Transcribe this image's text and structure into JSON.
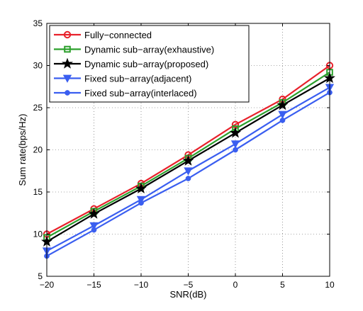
{
  "chart_data": {
    "type": "line",
    "title": "",
    "xlabel": "SNR(dB)",
    "ylabel": "Sum rate(bps/Hz)",
    "x": [
      -20,
      -15,
      -10,
      -5,
      0,
      5,
      10
    ],
    "xlim": [
      -20,
      10
    ],
    "ylim": [
      5,
      35
    ],
    "xticks": [
      "−20",
      "−15",
      "−10",
      "−5",
      "0",
      "5",
      "10"
    ],
    "yticks": [
      "5",
      "10",
      "15",
      "20",
      "25",
      "30",
      "35"
    ],
    "grid": true,
    "legend_position": "top-left",
    "series": [
      {
        "name": "Fully−connected",
        "color": "#e8212b",
        "marker": "circle-open",
        "values": [
          10.0,
          13.0,
          16.0,
          19.4,
          23.0,
          26.0,
          30.0
        ]
      },
      {
        "name": "Dynamic sub−array(exhaustive)",
        "color": "#2ca02c",
        "marker": "square-open",
        "values": [
          9.6,
          12.7,
          15.7,
          19.0,
          22.5,
          25.6,
          29.2
        ]
      },
      {
        "name": "Dynamic sub−array(proposed)",
        "color": "#000000",
        "marker": "star",
        "values": [
          9.1,
          12.4,
          15.4,
          18.7,
          22.0,
          25.3,
          28.5
        ]
      },
      {
        "name": "Fixed sub−array(adjacent)",
        "color": "#3a5ef0",
        "marker": "triangle-down",
        "values": [
          8.0,
          11.0,
          14.1,
          17.5,
          20.7,
          24.2,
          27.4
        ]
      },
      {
        "name": "Fixed sub−array(interlaced)",
        "color": "#3a5ef0",
        "marker": "dot",
        "values": [
          7.4,
          10.5,
          13.7,
          16.6,
          20.0,
          23.5,
          26.8
        ]
      }
    ]
  }
}
